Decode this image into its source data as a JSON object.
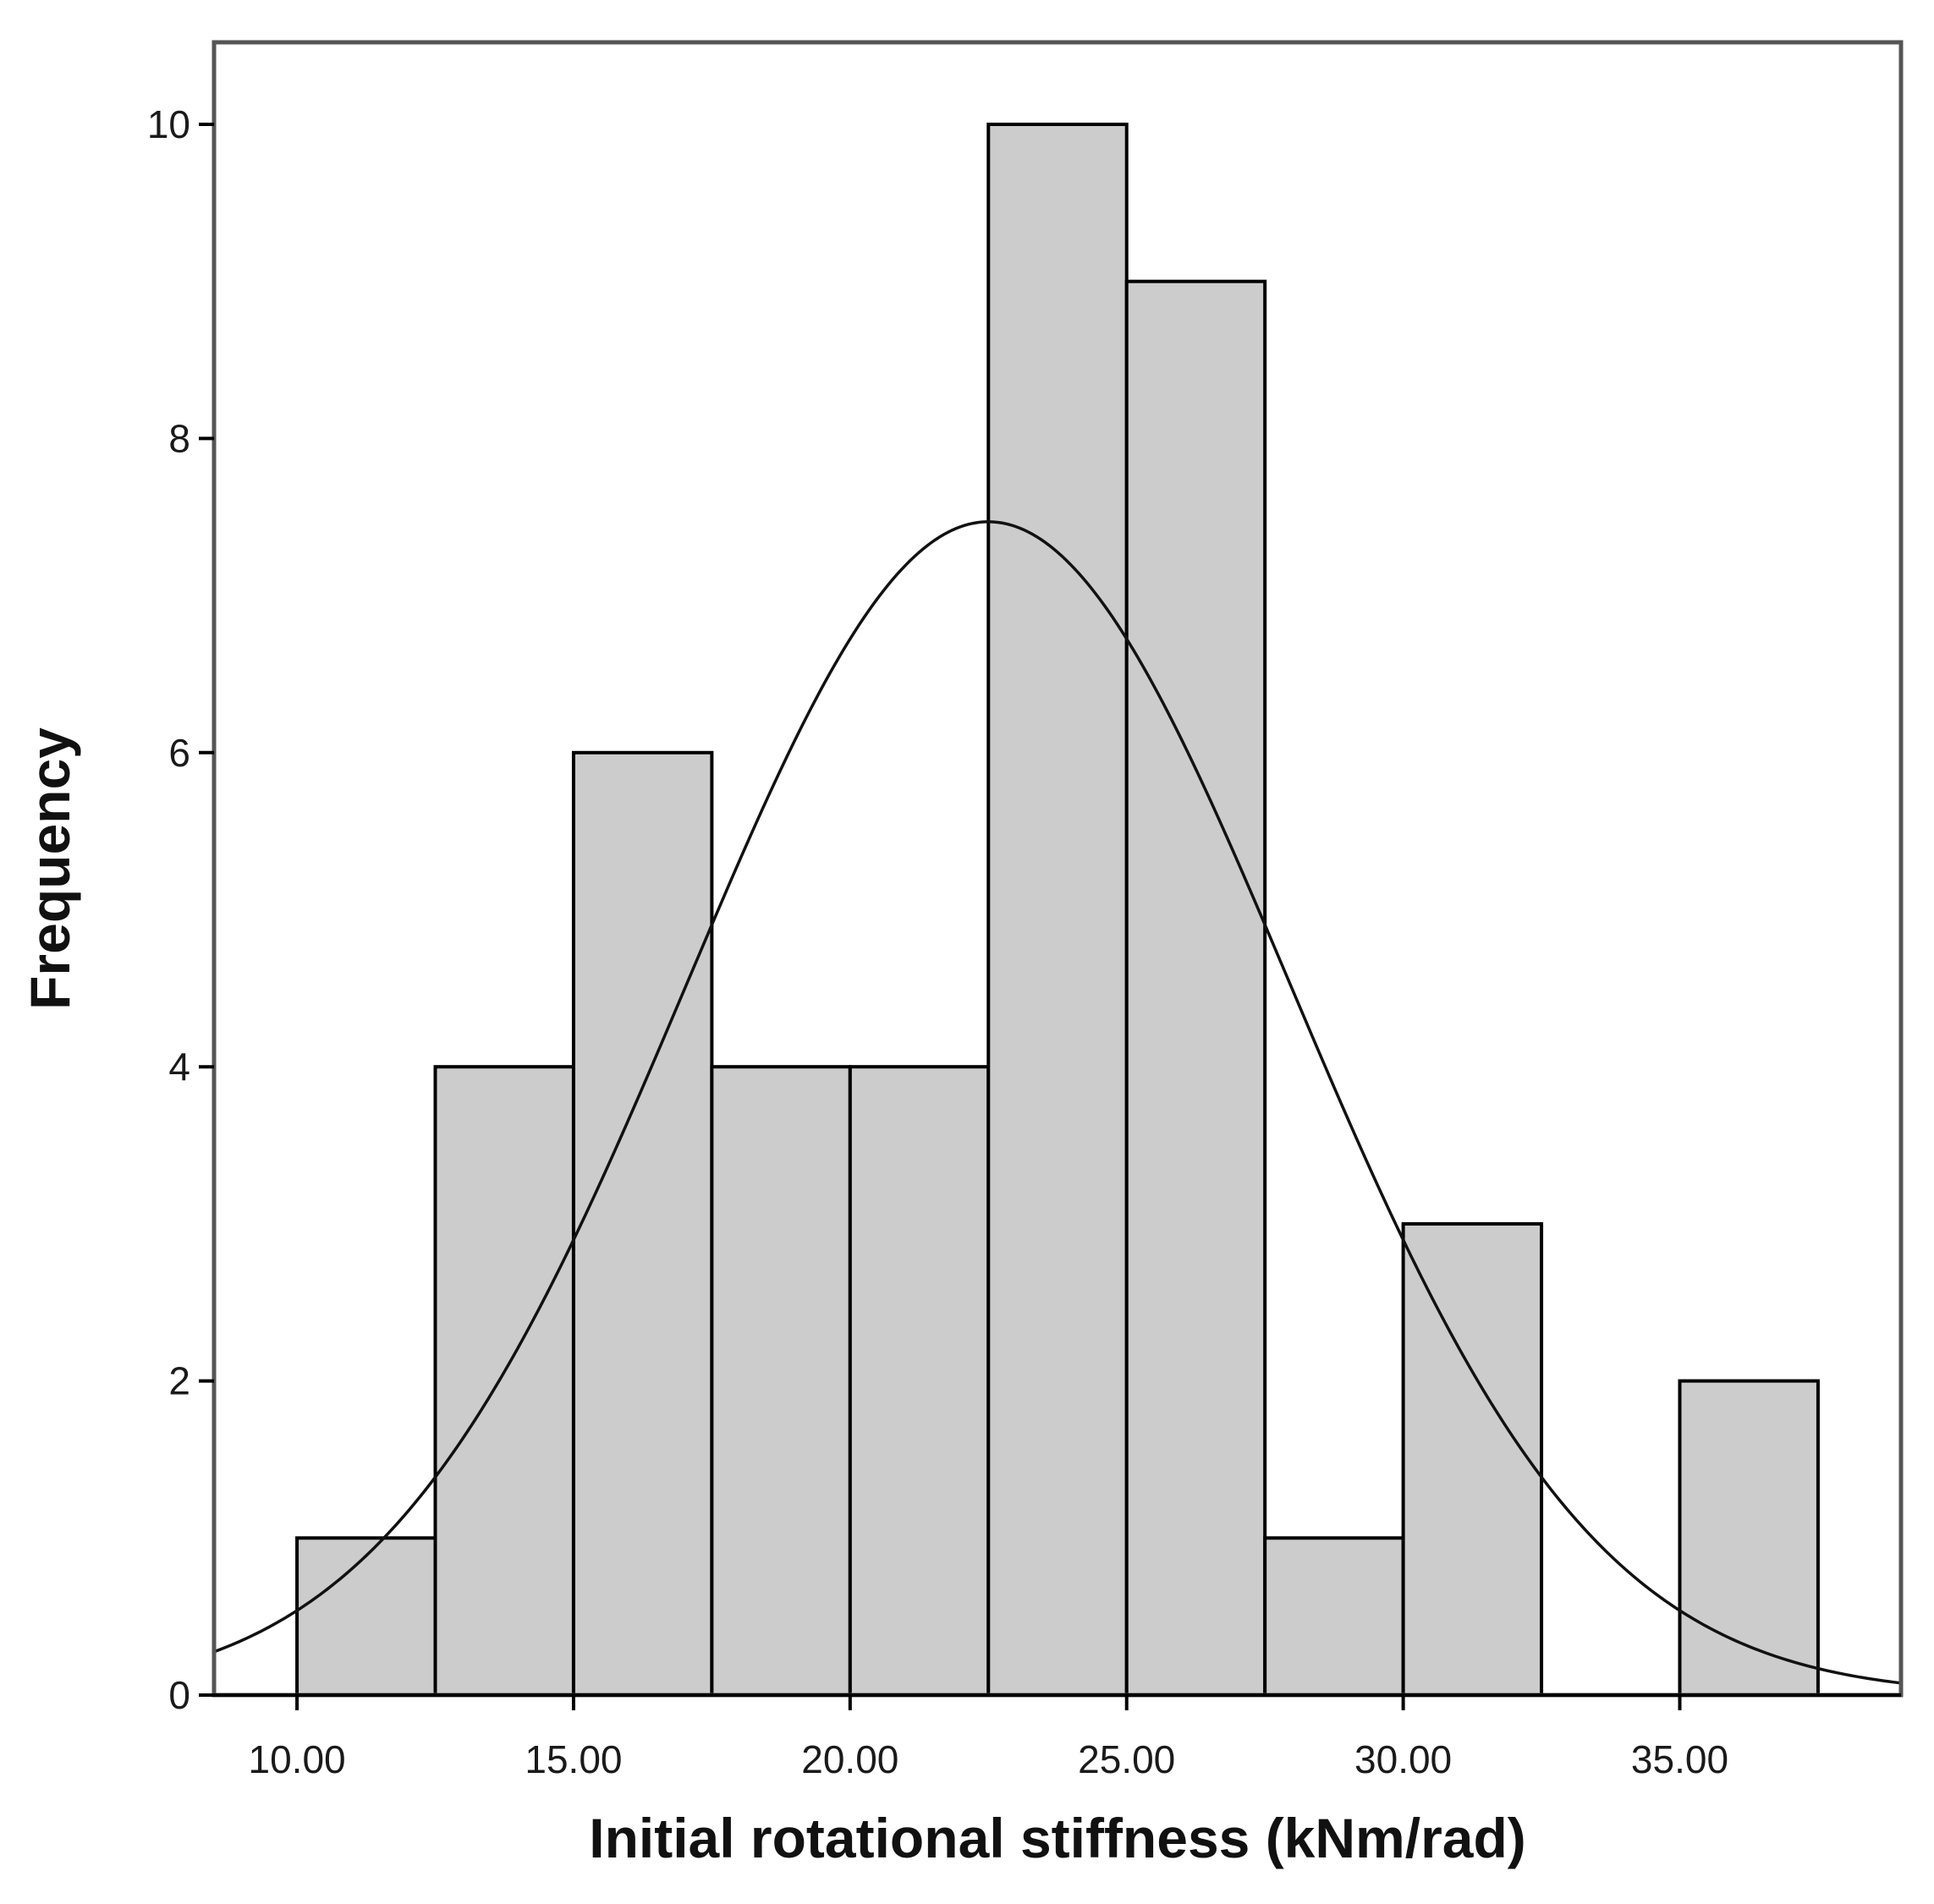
{
  "colors": {
    "bar_fill": "#cccccc",
    "bar_stroke": "#000000",
    "frame": "#555555",
    "curve": "#111111",
    "text": "#1a1a1a"
  },
  "chart_data": {
    "type": "bar",
    "subtype": "histogram",
    "title": "",
    "xlabel": "Initial rotational stiffness (kNm/rad)",
    "ylabel": "Frequency",
    "xlim": [
      8.5,
      39.0
    ],
    "ylim": [
      0,
      10.5
    ],
    "bin_width": 2.5,
    "bins": [
      {
        "start": 10.0,
        "end": 12.5,
        "count": 1
      },
      {
        "start": 12.5,
        "end": 15.0,
        "count": 4
      },
      {
        "start": 15.0,
        "end": 17.5,
        "count": 6
      },
      {
        "start": 17.5,
        "end": 20.0,
        "count": 4
      },
      {
        "start": 20.0,
        "end": 22.5,
        "count": 4
      },
      {
        "start": 22.5,
        "end": 25.0,
        "count": 10
      },
      {
        "start": 25.0,
        "end": 27.5,
        "count": 9
      },
      {
        "start": 27.5,
        "end": 30.0,
        "count": 1
      },
      {
        "start": 30.0,
        "end": 32.5,
        "count": 3
      },
      {
        "start": 32.5,
        "end": 35.0,
        "count": 0
      },
      {
        "start": 35.0,
        "end": 37.5,
        "count": 2
      }
    ],
    "x_ticks": [
      10,
      15,
      20,
      25,
      30,
      35
    ],
    "x_tick_labels": [
      "10.00",
      "15.00",
      "20.00",
      "25.00",
      "30.00",
      "35.00"
    ],
    "y_ticks": [
      0,
      2,
      4,
      6,
      8,
      10
    ],
    "y_tick_labels": [
      "0",
      "2",
      "4",
      "6",
      "8",
      "10"
    ],
    "normal_curve": {
      "mean": 22.5,
      "std_dev": 5.45,
      "n": 44,
      "peak_frequency": 7.47
    },
    "grid": false,
    "legend": "none"
  }
}
